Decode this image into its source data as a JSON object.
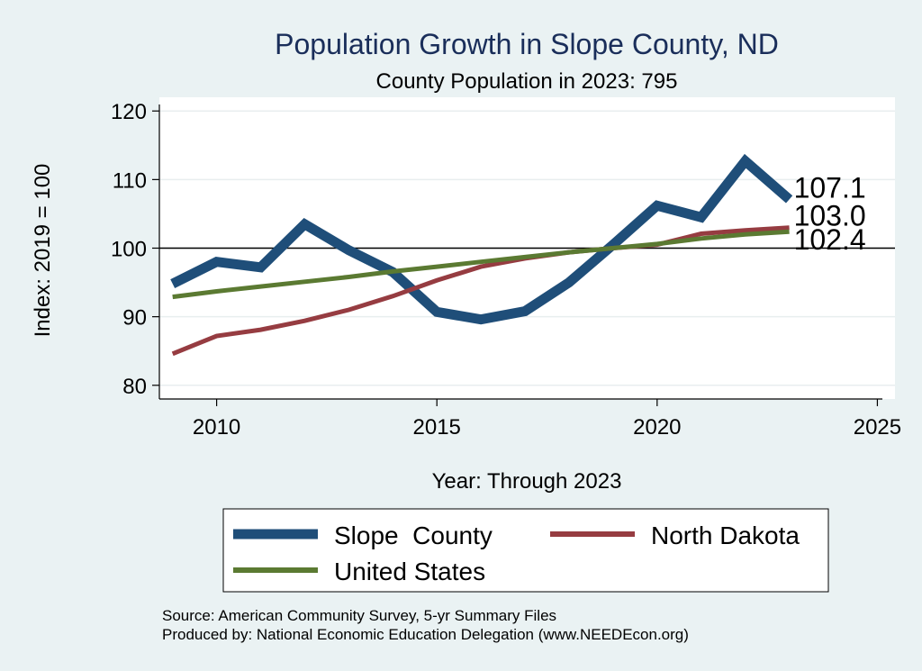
{
  "chart_data": {
    "type": "line",
    "title": "Population Growth in Slope County, ND",
    "subtitle": "County Population in 2023: 795",
    "xlabel": "Year: Through 2023",
    "ylabel": "Index: 2019 = 100",
    "xlim": [
      2008.7,
      2025.4
    ],
    "ylim": [
      78,
      122
    ],
    "xticks": [
      2010,
      2015,
      2020,
      2025
    ],
    "yticks": [
      80,
      90,
      100,
      110,
      120
    ],
    "reference_line": 100,
    "x": [
      2009,
      2010,
      2011,
      2012,
      2013,
      2014,
      2015,
      2016,
      2017,
      2018,
      2019,
      2020,
      2021,
      2022,
      2023
    ],
    "series": [
      {
        "name": "Slope  County",
        "color": "#1f4e79",
        "width": 11,
        "values": [
          94.8,
          98.0,
          97.2,
          103.5,
          99.7,
          96.5,
          90.7,
          89.6,
          90.8,
          95.0,
          100.5,
          106.2,
          104.5,
          112.7,
          107.1
        ],
        "end_label": "107.1"
      },
      {
        "name": "North Dakota",
        "color": "#963c41",
        "width": 5,
        "values": [
          84.6,
          87.2,
          88.1,
          89.4,
          91.0,
          93.0,
          95.3,
          97.3,
          98.5,
          99.4,
          100.0,
          100.5,
          102.1,
          102.6,
          103.0
        ],
        "end_label": "103.0"
      },
      {
        "name": "United States",
        "color": "#5b7a32",
        "width": 5,
        "values": [
          92.9,
          93.7,
          94.4,
          95.1,
          95.8,
          96.6,
          97.3,
          98.0,
          98.7,
          99.4,
          100.0,
          100.6,
          101.4,
          102.0,
          102.4
        ],
        "end_label": "102.4"
      }
    ],
    "legend": {
      "position": "bottom",
      "entries": [
        "Slope  County",
        "North Dakota",
        "United States"
      ]
    }
  },
  "source": {
    "line1": "Source: American Community Survey, 5-yr Summary Files",
    "line2": "Produced by: National Economic Education Delegation (www.NEEDEcon.org)"
  }
}
